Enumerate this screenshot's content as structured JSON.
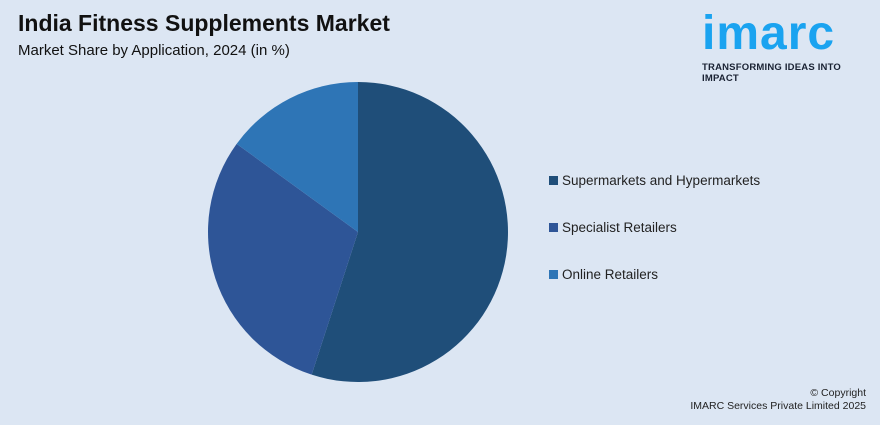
{
  "header": {
    "title": "India Fitness Supplements Market",
    "subtitle": "Market Share by Application, 2024 (in %)"
  },
  "logo": {
    "word": "imarc",
    "tagline": "TRANSFORMING IDEAS INTO IMPACT",
    "color": "#1aa3f0"
  },
  "chart_data": {
    "type": "pie",
    "title": "India Fitness Supplements Market",
    "subtitle": "Market Share by Application, 2024 (in %)",
    "categories": [
      "Supermarkets and Hypermarkets",
      "Specialist Retailers",
      "Online Retailers"
    ],
    "values": [
      55,
      30,
      15
    ],
    "colors": [
      "#1f4e79",
      "#2e5597",
      "#2e75b6"
    ],
    "legend_placement": "right",
    "start": "top",
    "direction": "clockwise"
  },
  "footer": {
    "copyright": "© Copyright",
    "company": "IMARC Services Private Limited 2025"
  }
}
